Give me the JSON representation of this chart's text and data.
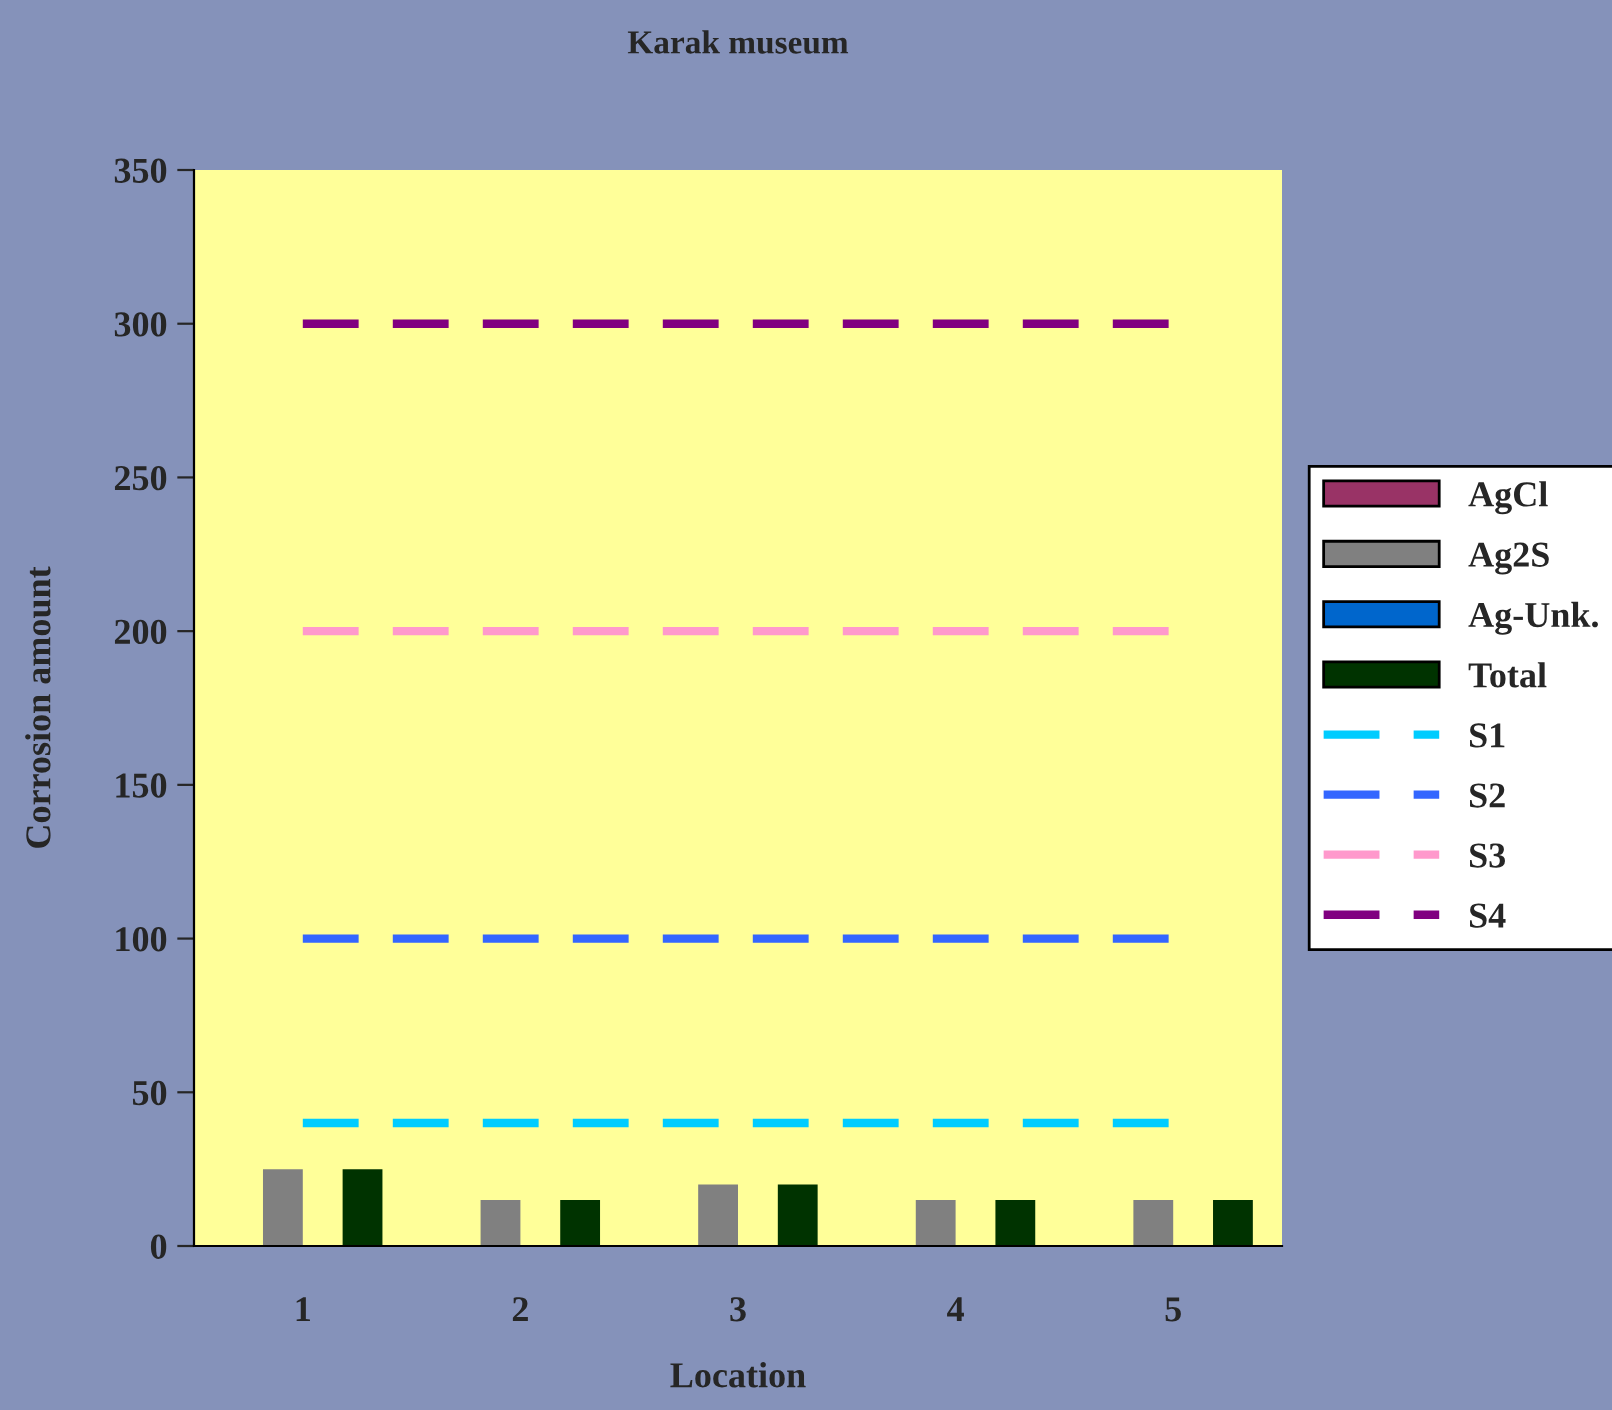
{
  "chart_data": {
    "type": "bar",
    "title": "Karak museum",
    "xlabel": "Location",
    "ylabel": "Corrosion amount",
    "categories": [
      "1",
      "2",
      "3",
      "4",
      "5"
    ],
    "series": [
      {
        "name": "AgCl",
        "color": "#993366",
        "values": [
          0,
          0,
          0,
          0,
          0
        ]
      },
      {
        "name": "Ag2S",
        "color": "#808080",
        "values": [
          25,
          15,
          20,
          15,
          15
        ]
      },
      {
        "name": "Ag-Unk.",
        "color": "#0066cc",
        "values": [
          0,
          0,
          0,
          0,
          0
        ]
      },
      {
        "name": "Total",
        "color": "#003300",
        "values": [
          25,
          15,
          20,
          15,
          15
        ]
      },
      {
        "name": "S1",
        "type": "line",
        "line_style": "dashed",
        "color": "#00ccff",
        "values": [
          40,
          40,
          40,
          40,
          40
        ]
      },
      {
        "name": "S2",
        "type": "line",
        "line_style": "dashed",
        "color": "#3366ff",
        "values": [
          100,
          100,
          100,
          100,
          100
        ]
      },
      {
        "name": "S3",
        "type": "line",
        "line_style": "dashed",
        "color": "#ff99cc",
        "values": [
          200,
          200,
          200,
          200,
          200
        ]
      },
      {
        "name": "S4",
        "type": "line",
        "line_style": "dashed",
        "color": "#800080",
        "values": [
          300,
          300,
          300,
          300,
          300
        ]
      }
    ],
    "ylim": [
      0,
      350
    ],
    "yticks": [
      0,
      50,
      100,
      150,
      200,
      250,
      300,
      350
    ],
    "grid": false,
    "legend": "right"
  }
}
